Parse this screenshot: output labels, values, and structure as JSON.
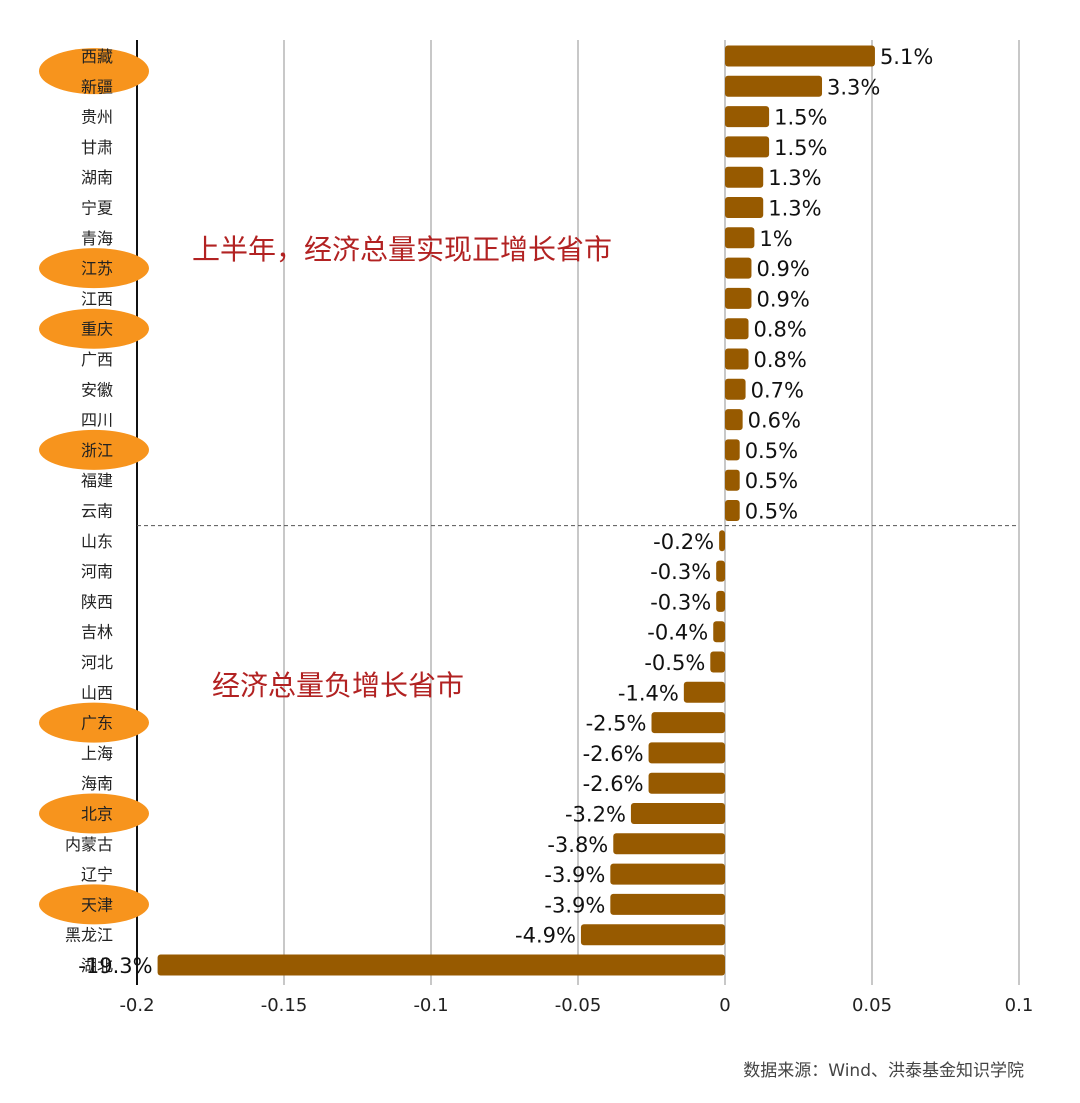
{
  "chart_data": {
    "type": "bar",
    "orientation": "horizontal",
    "categories": [
      "西藏",
      "新疆",
      "贵州",
      "甘肃",
      "湖南",
      "宁夏",
      "青海",
      "江苏",
      "江西",
      "重庆",
      "广西",
      "安徽",
      "四川",
      "浙江",
      "福建",
      "云南",
      "山东",
      "河南",
      "陕西",
      "吉林",
      "河北",
      "山西",
      "广东",
      "上海",
      "海南",
      "北京",
      "内蒙古",
      "辽宁",
      "天津",
      "黑龙江",
      "湖北"
    ],
    "values": [
      0.051,
      0.033,
      0.015,
      0.015,
      0.013,
      0.013,
      0.01,
      0.009,
      0.009,
      0.008,
      0.008,
      0.007,
      0.006,
      0.005,
      0.005,
      0.005,
      -0.002,
      -0.003,
      -0.003,
      -0.004,
      -0.005,
      -0.014,
      -0.025,
      -0.026,
      -0.026,
      -0.032,
      -0.038,
      -0.039,
      -0.039,
      -0.049,
      -0.193
    ],
    "data_labels": [
      "5.1%",
      "3.3%",
      "1.5%",
      "1.5%",
      "1.3%",
      "1.3%",
      "1%",
      "0.9%",
      "0.9%",
      "0.8%",
      "0.8%",
      "0.7%",
      "0.6%",
      "0.5%",
      "0.5%",
      "0.5%",
      "-0.2%",
      "-0.3%",
      "-0.3%",
      "-0.4%",
      "-0.5%",
      "-1.4%",
      "-2.5%",
      "-2.6%",
      "-2.6%",
      "-3.2%",
      "-3.8%",
      "-3.9%",
      "-3.9%",
      "-4.9%",
      "-19.3%"
    ],
    "highlighted": [
      "西藏",
      "新疆",
      "江苏",
      "重庆",
      "浙江",
      "广东",
      "北京",
      "天津"
    ],
    "xlim": [
      -0.2,
      0.1
    ],
    "xticks": [
      "-0.2",
      "-0.15",
      "-0.1",
      "-0.05",
      "0",
      "0.05",
      "0.1"
    ],
    "grid": "vertical",
    "colors": {
      "bar": "#975a00",
      "highlight": "#f7941d",
      "annotation": "#b22222"
    },
    "annotations": [
      "上半年，经济总量实现正增长省市",
      "经济总量负增长省市"
    ],
    "source": "数据来源：Wind、洪泰基金知识学院"
  }
}
